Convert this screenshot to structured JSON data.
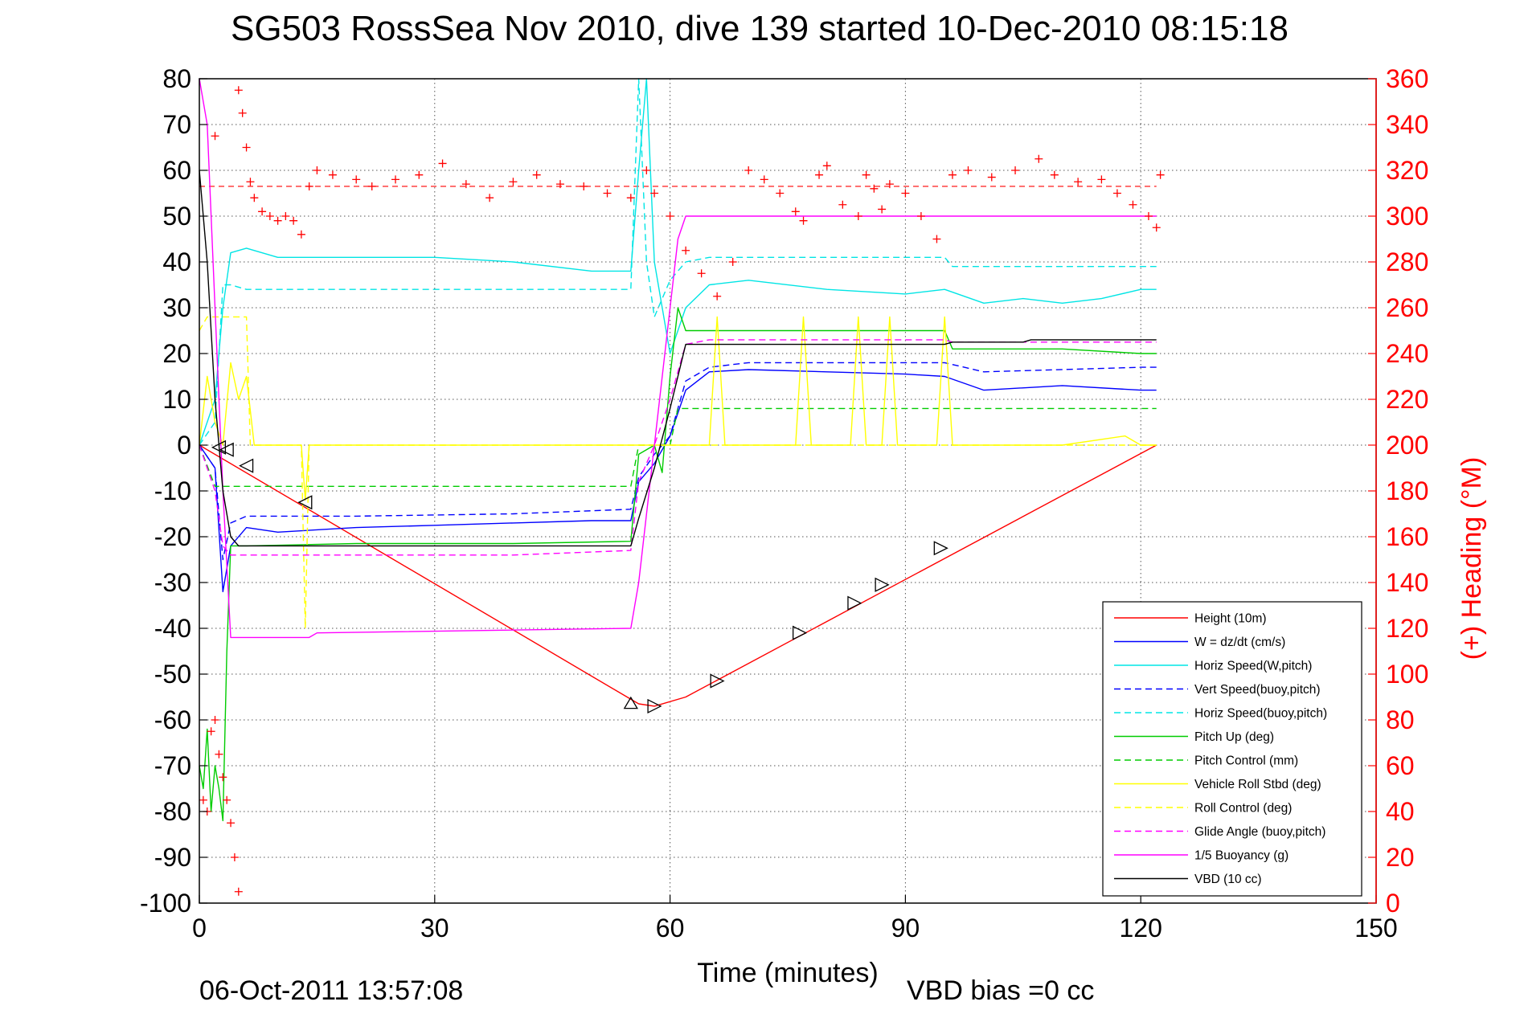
{
  "chart_data": {
    "type": "line",
    "title": "SG503 RossSea Nov 2010, dive 139 started 10-Dec-2010 08:15:18",
    "xlabel": "Time (minutes)",
    "ylabel": "",
    "y2label": "(+) Heading (°M)",
    "xlim": [
      0,
      150
    ],
    "ylim": [
      -100,
      80
    ],
    "y2lim": [
      0,
      360
    ],
    "x_ticks": [
      0,
      30,
      60,
      90,
      120,
      150
    ],
    "y_ticks": [
      80,
      70,
      60,
      50,
      40,
      30,
      20,
      10,
      0,
      -10,
      -20,
      -30,
      -40,
      -50,
      -60,
      -70,
      -80,
      -90,
      -100
    ],
    "y2_ticks": [
      360,
      340,
      320,
      300,
      280,
      260,
      240,
      220,
      200,
      180,
      160,
      140,
      120,
      100,
      80,
      60,
      40,
      20,
      0
    ],
    "grid": true,
    "legend_position": "bottom-right",
    "footer_left": "06-Oct-2011 13:57:08",
    "footer_right": "VBD bias =0 cc",
    "series": [
      {
        "name": "Height (10m)",
        "color": "#ff0000",
        "style": "solid",
        "x": [
          0,
          56,
          58,
          62,
          122
        ],
        "y": [
          0,
          -56.5,
          -57,
          -55,
          0
        ]
      },
      {
        "name": "W = dz/dt (cm/s)",
        "color": "#0000ff",
        "style": "solid",
        "x": [
          0,
          2,
          3,
          4,
          6,
          10,
          20,
          30,
          40,
          50,
          55,
          56,
          58,
          60,
          62,
          65,
          70,
          80,
          90,
          95,
          100,
          110,
          120,
          122
        ],
        "y": [
          0,
          -5,
          -32,
          -22,
          -18,
          -19,
          -18,
          -17.5,
          -17,
          -16.5,
          -16.5,
          -8,
          -4,
          2,
          12,
          16,
          16.5,
          16,
          15.5,
          15,
          12,
          13,
          12,
          12
        ]
      },
      {
        "name": "Horiz Speed(W,pitch)",
        "color": "#00e5e5",
        "style": "solid",
        "x": [
          0,
          2,
          3,
          4,
          6,
          10,
          20,
          30,
          40,
          50,
          55,
          56,
          57,
          58,
          60,
          62,
          65,
          70,
          80,
          90,
          95,
          100,
          105,
          110,
          115,
          120,
          122
        ],
        "y": [
          0,
          10,
          30,
          42,
          43,
          41,
          41,
          41,
          40,
          38,
          38,
          60,
          80,
          40,
          20,
          30,
          35,
          36,
          34,
          33,
          34,
          31,
          32,
          31,
          32,
          34,
          34
        ]
      },
      {
        "name": "Vert Speed(buoy,pitch)",
        "color": "#0000ff",
        "style": "dashed",
        "x": [
          0,
          2,
          3,
          4,
          6,
          20,
          40,
          55,
          56,
          58,
          60,
          62,
          65,
          70,
          80,
          90,
          95,
          100,
          120,
          122
        ],
        "y": [
          0,
          -5,
          -25,
          -17,
          -15.5,
          -15.5,
          -15,
          -14,
          -7,
          -2,
          2,
          14,
          17,
          18,
          18,
          18,
          18,
          16,
          17,
          17
        ]
      },
      {
        "name": "Horiz Speed(buoy,pitch)",
        "color": "#00e5e5",
        "style": "dashed",
        "x": [
          0,
          2,
          3,
          4,
          6,
          20,
          40,
          55,
          56,
          57,
          58,
          60,
          62,
          65,
          70,
          80,
          95,
          96,
          120,
          122
        ],
        "y": [
          0,
          5,
          35,
          35,
          34,
          34,
          34,
          34,
          80,
          40,
          28,
          36,
          40,
          41,
          41,
          41,
          41,
          39,
          39,
          39
        ]
      },
      {
        "name": "Pitch Up (deg)",
        "color": "#00cc00",
        "style": "solid",
        "x": [
          0,
          0.5,
          1,
          1.5,
          2,
          2.5,
          3,
          3.5,
          4,
          6,
          20,
          40,
          55,
          56,
          58,
          59,
          60,
          61,
          62,
          65,
          70,
          80,
          95,
          96,
          110,
          120,
          122
        ],
        "y": [
          -70,
          -75,
          -62,
          -80,
          -70,
          -75,
          -82,
          -45,
          -22,
          -22,
          -21.5,
          -21.5,
          -21,
          -2,
          0,
          -6,
          15,
          30,
          25,
          25,
          25,
          25,
          25,
          21,
          21,
          20,
          20
        ]
      },
      {
        "name": "Pitch Control (mm)",
        "color": "#00cc00",
        "style": "dashed",
        "x": [
          0,
          2,
          3,
          55,
          56,
          60,
          61,
          122
        ],
        "y": [
          0,
          -9,
          -9,
          -9,
          0,
          0,
          8,
          8
        ]
      },
      {
        "name": "Vehicle Roll Stbd (deg)",
        "color": "#ffff00",
        "style": "solid",
        "x": [
          0,
          1,
          2,
          3,
          4,
          5,
          6,
          7,
          13,
          13.5,
          14,
          14.5,
          15,
          55,
          60,
          65,
          66,
          67,
          76,
          77,
          78,
          83,
          84,
          85,
          87,
          88,
          89,
          94,
          95,
          96,
          110,
          118,
          120,
          122
        ],
        "y": [
          0,
          15,
          5,
          0,
          18,
          10,
          15,
          0,
          0,
          -12,
          0,
          0,
          0,
          0,
          0,
          0,
          28,
          0,
          0,
          28,
          0,
          0,
          28,
          0,
          0,
          28,
          0,
          0,
          28,
          0,
          0,
          2,
          0,
          0
        ]
      },
      {
        "name": "Roll Control (deg)",
        "color": "#ffff00",
        "style": "dashed",
        "x": [
          0,
          1,
          3,
          4,
          6,
          6.5,
          7,
          13,
          13.5,
          14,
          14.5,
          15,
          122
        ],
        "y": [
          25,
          28,
          28,
          28,
          28,
          0,
          0,
          0,
          -40,
          0,
          0,
          0,
          0
        ]
      },
      {
        "name": "Glide Angle (buoy,pitch)",
        "color": "#ff00ff",
        "style": "dashed",
        "x": [
          0,
          2,
          3,
          4,
          6,
          20,
          40,
          55,
          56,
          58,
          60,
          62,
          65,
          80,
          95,
          96,
          120,
          122
        ],
        "y": [
          0,
          -10,
          -22,
          -24,
          -24,
          -24,
          -24,
          -23,
          -8,
          0,
          10,
          22,
          23,
          23,
          23,
          22.5,
          22.5,
          22.5
        ]
      },
      {
        "name": "1/5 Buoyancy (g)",
        "color": "#ff00ff",
        "style": "solid",
        "x": [
          0,
          1,
          2,
          3,
          4,
          5,
          14,
          15,
          55,
          56,
          58,
          61,
          62,
          65,
          80,
          95,
          105,
          106,
          120,
          122
        ],
        "y": [
          80,
          70,
          30,
          -10,
          -42,
          -42,
          -42,
          -41,
          -40,
          -30,
          0,
          45,
          50,
          50,
          50,
          50,
          50,
          50,
          50,
          50
        ]
      },
      {
        "name": "VBD (10 cc)",
        "color": "#000000",
        "style": "solid",
        "x": [
          0,
          1,
          2,
          3,
          4,
          5,
          6,
          7,
          55,
          56,
          58,
          60,
          62,
          65,
          80,
          95,
          96,
          105,
          106,
          122
        ],
        "y": [
          60,
          40,
          10,
          -10,
          -20,
          -22,
          -22,
          -22,
          -22,
          -16,
          -5,
          8,
          22,
          22,
          22,
          22,
          22.5,
          22.5,
          23,
          23
        ]
      }
    ],
    "heading_points": [
      {
        "x": 0.5,
        "h": 45
      },
      {
        "x": 1,
        "h": 40
      },
      {
        "x": 1.5,
        "h": 75
      },
      {
        "x": 2,
        "h": 80
      },
      {
        "x": 2.5,
        "h": 65
      },
      {
        "x": 3,
        "h": 55
      },
      {
        "x": 3.5,
        "h": 45
      },
      {
        "x": 4,
        "h": 35
      },
      {
        "x": 4.5,
        "h": 20
      },
      {
        "x": 5,
        "h": 5
      },
      {
        "x": 2,
        "h": 335
      },
      {
        "x": 5,
        "h": 355
      },
      {
        "x": 5.5,
        "h": 345
      },
      {
        "x": 6,
        "h": 330
      },
      {
        "x": 6.5,
        "h": 315
      },
      {
        "x": 7,
        "h": 308
      },
      {
        "x": 8,
        "h": 302
      },
      {
        "x": 9,
        "h": 300
      },
      {
        "x": 10,
        "h": 298
      },
      {
        "x": 11,
        "h": 300
      },
      {
        "x": 12,
        "h": 298
      },
      {
        "x": 13,
        "h": 292
      },
      {
        "x": 14,
        "h": 313
      },
      {
        "x": 15,
        "h": 320
      },
      {
        "x": 17,
        "h": 318
      },
      {
        "x": 20,
        "h": 316
      },
      {
        "x": 22,
        "h": 313
      },
      {
        "x": 25,
        "h": 316
      },
      {
        "x": 28,
        "h": 318
      },
      {
        "x": 31,
        "h": 323
      },
      {
        "x": 34,
        "h": 314
      },
      {
        "x": 37,
        "h": 308
      },
      {
        "x": 40,
        "h": 315
      },
      {
        "x": 43,
        "h": 318
      },
      {
        "x": 46,
        "h": 314
      },
      {
        "x": 49,
        "h": 313
      },
      {
        "x": 52,
        "h": 310
      },
      {
        "x": 55,
        "h": 308
      },
      {
        "x": 57,
        "h": 320
      },
      {
        "x": 58,
        "h": 310
      },
      {
        "x": 60,
        "h": 300
      },
      {
        "x": 62,
        "h": 285
      },
      {
        "x": 64,
        "h": 275
      },
      {
        "x": 66,
        "h": 265
      },
      {
        "x": 68,
        "h": 280
      },
      {
        "x": 70,
        "h": 320
      },
      {
        "x": 72,
        "h": 316
      },
      {
        "x": 74,
        "h": 310
      },
      {
        "x": 76,
        "h": 302
      },
      {
        "x": 77,
        "h": 298
      },
      {
        "x": 79,
        "h": 318
      },
      {
        "x": 80,
        "h": 322
      },
      {
        "x": 82,
        "h": 305
      },
      {
        "x": 84,
        "h": 300
      },
      {
        "x": 85,
        "h": 318
      },
      {
        "x": 86,
        "h": 312
      },
      {
        "x": 87,
        "h": 303
      },
      {
        "x": 88,
        "h": 314
      },
      {
        "x": 90,
        "h": 310
      },
      {
        "x": 92,
        "h": 300
      },
      {
        "x": 94,
        "h": 290
      },
      {
        "x": 96,
        "h": 318
      },
      {
        "x": 98,
        "h": 320
      },
      {
        "x": 101,
        "h": 317
      },
      {
        "x": 104,
        "h": 320
      },
      {
        "x": 107,
        "h": 325
      },
      {
        "x": 109,
        "h": 318
      },
      {
        "x": 112,
        "h": 315
      },
      {
        "x": 115,
        "h": 316
      },
      {
        "x": 117,
        "h": 310
      },
      {
        "x": 119,
        "h": 305
      },
      {
        "x": 121,
        "h": 300
      },
      {
        "x": 122,
        "h": 295
      },
      {
        "x": 122.5,
        "h": 318
      }
    ],
    "heading_target": 313,
    "markers": [
      {
        "x": 2.5,
        "y": -0.5,
        "shape": "triangle-left"
      },
      {
        "x": 3.5,
        "y": -1,
        "shape": "triangle-left"
      },
      {
        "x": 6,
        "y": -4.5,
        "shape": "triangle-left"
      },
      {
        "x": 13.5,
        "y": -12.5,
        "shape": "triangle-left"
      },
      {
        "x": 55,
        "y": -56.5,
        "shape": "triangle-up"
      },
      {
        "x": 58,
        "y": -57,
        "shape": "triangle-right"
      },
      {
        "x": 66,
        "y": -51.5,
        "shape": "triangle-right"
      },
      {
        "x": 76.5,
        "y": -41,
        "shape": "triangle-right"
      },
      {
        "x": 83.5,
        "y": -34.5,
        "shape": "triangle-right"
      },
      {
        "x": 87,
        "y": -30.5,
        "shape": "triangle-right"
      },
      {
        "x": 94.5,
        "y": -22.5,
        "shape": "triangle-right"
      }
    ]
  }
}
